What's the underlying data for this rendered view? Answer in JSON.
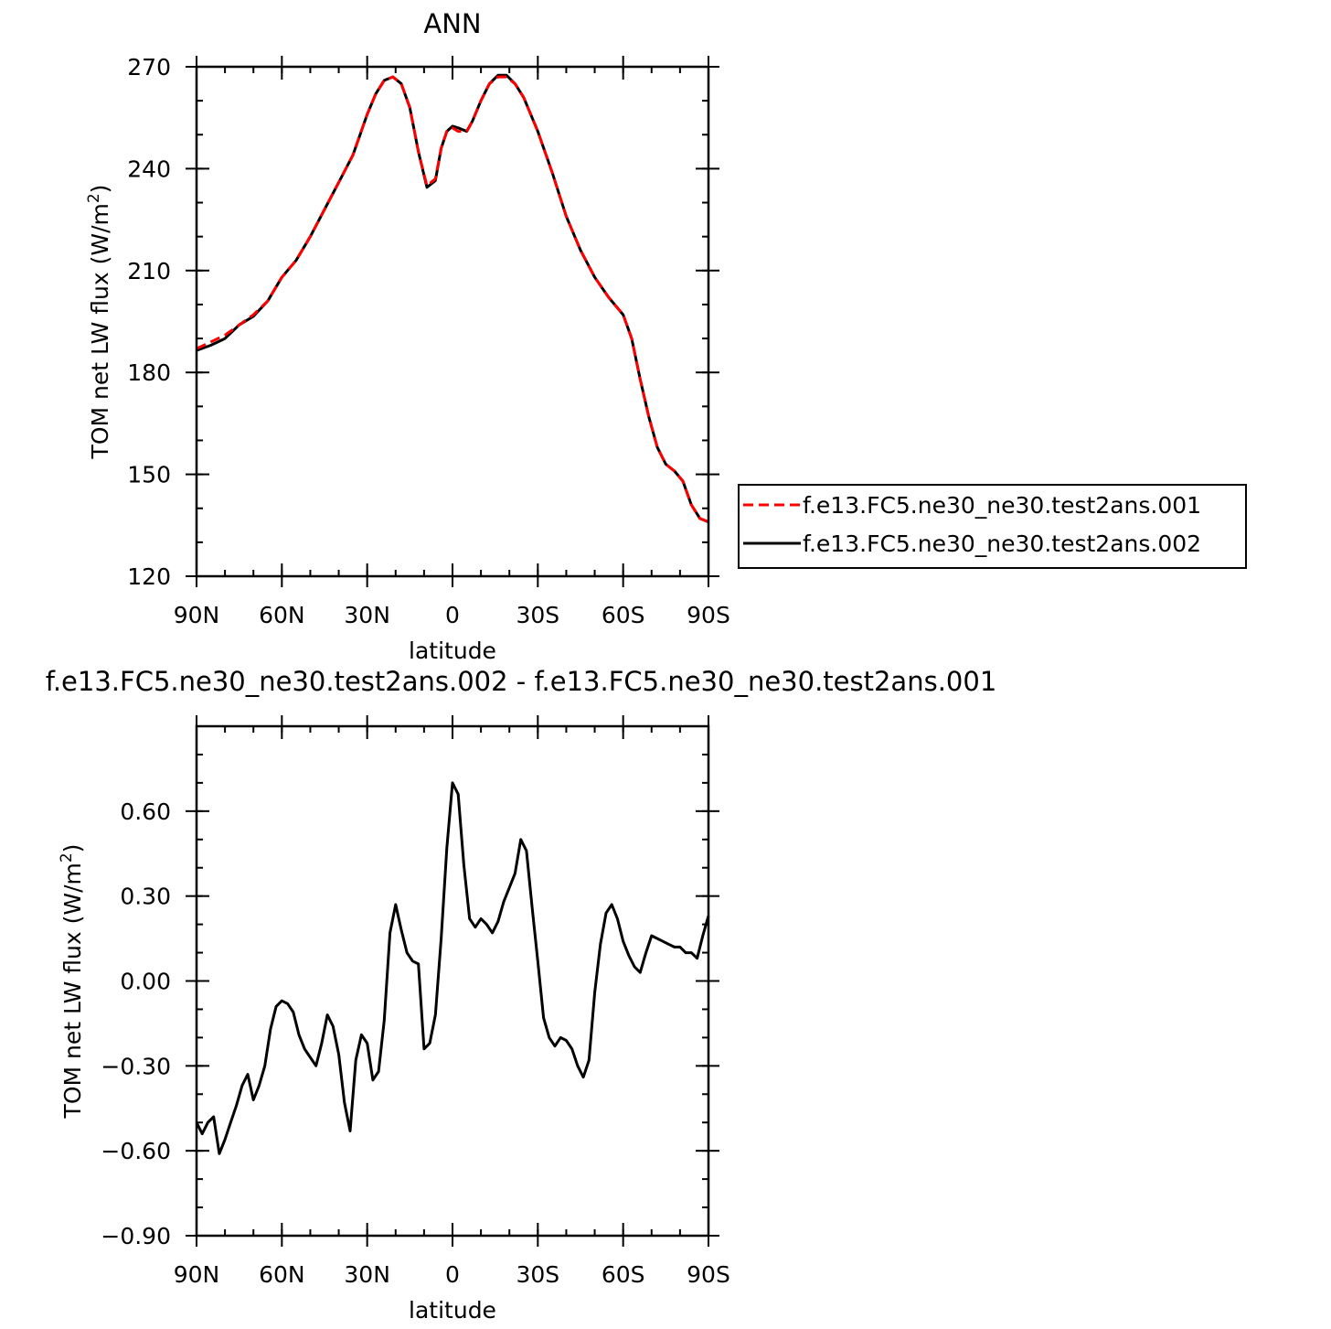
{
  "chart_data": [
    {
      "type": "line",
      "title": "ANN",
      "xlabel": "latitude",
      "ylabel": "TOM net LW flux (W/m",
      "ylabel_sup": "2",
      "ylabel_end": ")",
      "x_ticks": [
        {
          "value": -90,
          "label": "90N"
        },
        {
          "value": -60,
          "label": "60N"
        },
        {
          "value": -30,
          "label": "30N"
        },
        {
          "value": 0,
          "label": "0"
        },
        {
          "value": 30,
          "label": "30S"
        },
        {
          "value": 60,
          "label": "60S"
        },
        {
          "value": 90,
          "label": "90S"
        }
      ],
      "y_ticks": [
        {
          "value": 120,
          "label": "120"
        },
        {
          "value": 150,
          "label": "150"
        },
        {
          "value": 180,
          "label": "180"
        },
        {
          "value": 210,
          "label": "210"
        },
        {
          "value": 240,
          "label": "240"
        },
        {
          "value": 270,
          "label": "270"
        }
      ],
      "xlim": [
        -90,
        90
      ],
      "ylim": [
        120,
        270
      ],
      "legend_position": "right",
      "series": [
        {
          "name": "f.e13.FC5.ne30_ne30.test2ans.001",
          "color": "#ff0000",
          "style": "dashed",
          "x": [
            -90,
            -85,
            -80,
            -75,
            -70,
            -65,
            -60,
            -55,
            -50,
            -45,
            -40,
            -35,
            -30,
            -27,
            -24,
            -21,
            -18,
            -15,
            -12,
            -9,
            -6,
            -4,
            -2,
            0,
            2,
            5,
            7,
            10,
            13,
            16,
            19,
            22,
            25,
            30,
            35,
            40,
            45,
            50,
            55,
            60,
            63,
            66,
            69,
            72,
            75,
            78,
            81,
            84,
            87,
            90
          ],
          "y": [
            187,
            189,
            191,
            194,
            197,
            201,
            208,
            213,
            220,
            228,
            236,
            244,
            256,
            262,
            266,
            267,
            265,
            258,
            245,
            235,
            237,
            246,
            251,
            252,
            251,
            251,
            254,
            260,
            265,
            267,
            267,
            265,
            261,
            251,
            239,
            226,
            216,
            208,
            202,
            197,
            190,
            178,
            167,
            158,
            153,
            151,
            148,
            141,
            137,
            136
          ]
        },
        {
          "name": "f.e13.FC5.ne30_ne30.test2ans.002",
          "color": "#000000",
          "style": "solid",
          "x": [
            -90,
            -85,
            -80,
            -75,
            -70,
            -65,
            -60,
            -55,
            -50,
            -45,
            -40,
            -35,
            -30,
            -27,
            -24,
            -21,
            -18,
            -15,
            -12,
            -9,
            -6,
            -4,
            -2,
            0,
            2,
            5,
            7,
            10,
            13,
            16,
            19,
            22,
            25,
            30,
            35,
            40,
            45,
            50,
            55,
            60,
            63,
            66,
            69,
            72,
            75,
            78,
            81,
            84,
            87,
            90
          ],
          "y": [
            186.5,
            188,
            190,
            194,
            196.5,
            201,
            208,
            213,
            220,
            228,
            236,
            244,
            256,
            262,
            266,
            267,
            265,
            258,
            245,
            234.5,
            236.5,
            246,
            251,
            252.5,
            252,
            251,
            254,
            260,
            265,
            267.5,
            267.5,
            265,
            261,
            251,
            239,
            226,
            216,
            208,
            202,
            197,
            190,
            178,
            167,
            158,
            153,
            151,
            148,
            141,
            137,
            136
          ]
        }
      ]
    },
    {
      "type": "line",
      "title": "f.e13.FC5.ne30_ne30.test2ans.002 - f.e13.FC5.ne30_ne30.test2ans.001",
      "xlabel": "latitude",
      "ylabel": "TOM net LW flux (W/m",
      "ylabel_sup": "2",
      "ylabel_end": ")",
      "x_ticks": [
        {
          "value": -90,
          "label": "90N"
        },
        {
          "value": -60,
          "label": "60N"
        },
        {
          "value": -30,
          "label": "30N"
        },
        {
          "value": 0,
          "label": "0"
        },
        {
          "value": 30,
          "label": "30S"
        },
        {
          "value": 60,
          "label": "60S"
        },
        {
          "value": 90,
          "label": "90S"
        }
      ],
      "y_ticks": [
        {
          "value": -0.9,
          "label": "−0.90"
        },
        {
          "value": -0.6,
          "label": "−0.60"
        },
        {
          "value": -0.3,
          "label": "−0.30"
        },
        {
          "value": 0,
          "label": "0.00"
        },
        {
          "value": 0.3,
          "label": "0.30"
        },
        {
          "value": 0.6,
          "label": "0.60"
        }
      ],
      "xlim": [
        -90,
        90
      ],
      "ylim": [
        -0.9,
        0.9
      ],
      "series": [
        {
          "name": "",
          "color": "#000000",
          "style": "solid",
          "x": [
            -90,
            -88,
            -86,
            -84,
            -82,
            -80,
            -78,
            -76,
            -74,
            -72,
            -70,
            -68,
            -66,
            -64,
            -62,
            -60,
            -58,
            -56,
            -54,
            -52,
            -50,
            -48,
            -46,
            -44,
            -42,
            -40,
            -38,
            -36,
            -34,
            -32,
            -30,
            -28,
            -26,
            -24,
            -22,
            -20,
            -18,
            -16,
            -14,
            -12,
            -10,
            -8,
            -6,
            -4,
            -2,
            0,
            2,
            4,
            6,
            8,
            10,
            12,
            14,
            16,
            18,
            20,
            22,
            24,
            26,
            28,
            30,
            32,
            34,
            36,
            38,
            40,
            42,
            44,
            46,
            48,
            50,
            52,
            54,
            56,
            58,
            60,
            62,
            64,
            66,
            68,
            70,
            72,
            74,
            76,
            78,
            80,
            82,
            84,
            86,
            88,
            90
          ],
          "y": [
            -0.5,
            -0.54,
            -0.5,
            -0.48,
            -0.61,
            -0.56,
            -0.5,
            -0.44,
            -0.37,
            -0.33,
            -0.42,
            -0.37,
            -0.3,
            -0.17,
            -0.09,
            -0.07,
            -0.08,
            -0.11,
            -0.19,
            -0.24,
            -0.27,
            -0.3,
            -0.22,
            -0.12,
            -0.16,
            -0.26,
            -0.43,
            -0.53,
            -0.28,
            -0.19,
            -0.22,
            -0.35,
            -0.32,
            -0.14,
            0.17,
            0.27,
            0.18,
            0.1,
            0.07,
            0.06,
            -0.24,
            -0.22,
            -0.12,
            0.15,
            0.47,
            0.7,
            0.66,
            0.41,
            0.22,
            0.19,
            0.22,
            0.2,
            0.17,
            0.21,
            0.28,
            0.33,
            0.38,
            0.5,
            0.46,
            0.26,
            0.07,
            -0.13,
            -0.2,
            -0.23,
            -0.2,
            -0.21,
            -0.24,
            -0.3,
            -0.34,
            -0.28,
            -0.04,
            0.13,
            0.24,
            0.27,
            0.22,
            0.14,
            0.09,
            0.05,
            0.03,
            0.1,
            0.16,
            0.15,
            0.14,
            0.13,
            0.12,
            0.12,
            0.1,
            0.1,
            0.08,
            0.16,
            0.23
          ]
        }
      ]
    }
  ]
}
